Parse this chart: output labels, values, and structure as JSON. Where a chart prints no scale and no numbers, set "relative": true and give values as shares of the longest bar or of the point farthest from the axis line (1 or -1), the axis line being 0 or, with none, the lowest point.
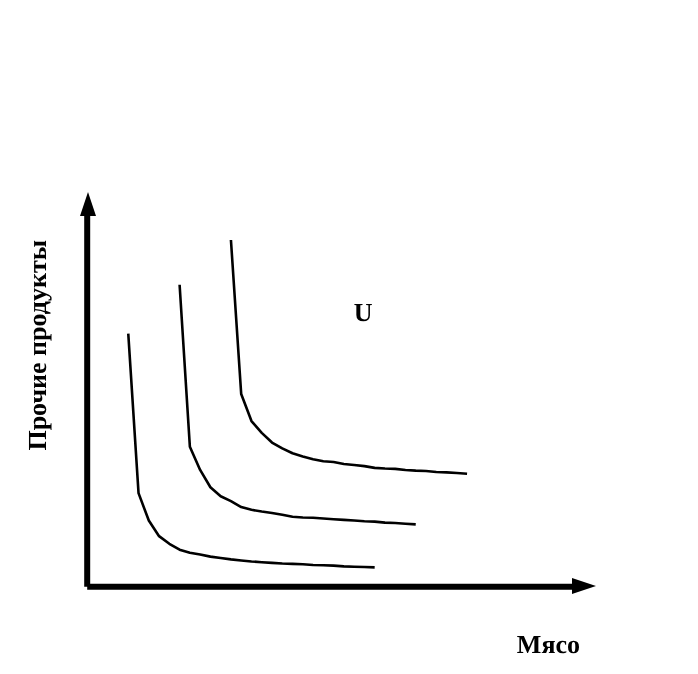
{
  "chart_data": {
    "type": "line",
    "relative": true,
    "xlabel": "Мясо",
    "ylabel": "Прочие продукты",
    "grid": false,
    "marker": "none",
    "line_style": "solid",
    "annotations": [
      "U"
    ],
    "categories": [
      null,
      null,
      null,
      null,
      null,
      null,
      null,
      null,
      null,
      null,
      null,
      null,
      null,
      null,
      null,
      null,
      null,
      null,
      null,
      null,
      null,
      null,
      null,
      null,
      null,
      null,
      null,
      null,
      null,
      null,
      null,
      null,
      null,
      null,
      null,
      null,
      null,
      null,
      null,
      null,
      null,
      null,
      null,
      null,
      null,
      null,
      null,
      null,
      null
    ],
    "series": [
      {
        "color": "#000000",
        "values": [
          null,
          null,
          null,
          null,
          0.73,
          0.27,
          0.191,
          0.146,
          0.124,
          0.107,
          0.098,
          0.093,
          0.087,
          0.083,
          0.079,
          0.076,
          0.073,
          0.071,
          0.069,
          0.067,
          0.066,
          0.065,
          0.063,
          0.062,
          0.061,
          0.059,
          0.058,
          0.057,
          0.056,
          null,
          null,
          null,
          null,
          null,
          null,
          null,
          null,
          null,
          null,
          null,
          null,
          null,
          null,
          null,
          null,
          null,
          null,
          null,
          null
        ]
      },
      {
        "color": "#000000",
        "values": [
          null,
          null,
          null,
          null,
          null,
          null,
          null,
          null,
          null,
          0.871,
          0.404,
          0.337,
          0.287,
          0.261,
          0.247,
          0.23,
          0.222,
          0.217,
          0.213,
          0.208,
          0.202,
          0.2,
          0.199,
          0.197,
          0.195,
          0.193,
          0.191,
          0.189,
          0.188,
          0.185,
          0.184,
          0.182,
          0.18,
          null,
          null,
          null,
          null,
          null,
          null,
          null,
          null,
          null,
          null,
          null,
          null,
          null,
          null,
          null,
          null
        ]
      },
      {
        "color": "#000000",
        "values": [
          null,
          null,
          null,
          null,
          null,
          null,
          null,
          null,
          null,
          null,
          null,
          null,
          null,
          null,
          1.0,
          0.556,
          0.478,
          0.444,
          0.416,
          0.399,
          0.385,
          0.376,
          0.368,
          0.362,
          0.36,
          0.354,
          0.351,
          0.348,
          0.343,
          0.341,
          0.34,
          0.337,
          0.335,
          0.334,
          0.331,
          0.33,
          0.328,
          0.326,
          null,
          null,
          null,
          null,
          null,
          null,
          null,
          null,
          null,
          null,
          null
        ]
      }
    ]
  }
}
